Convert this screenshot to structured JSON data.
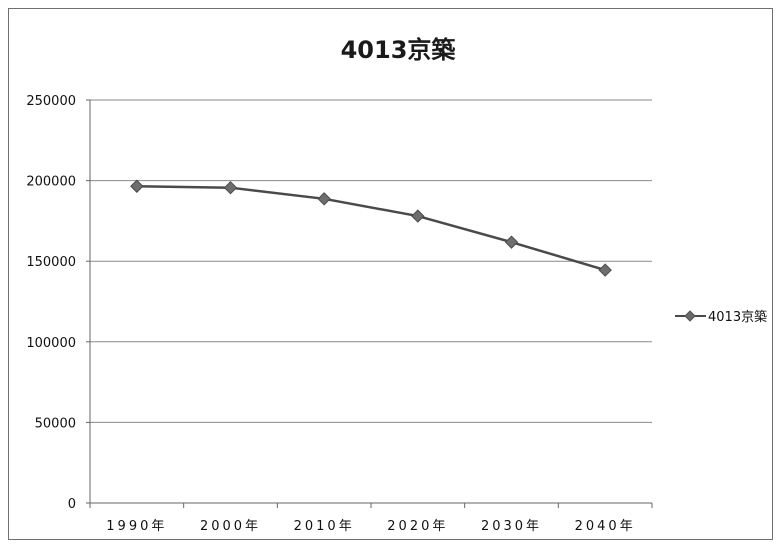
{
  "chart_data": {
    "type": "line",
    "title": "4013京築",
    "categories": [
      "1990年",
      "2000年",
      "2010年",
      "2020年",
      "2030年",
      "2040年"
    ],
    "y_ticks": [
      "0",
      "50000",
      "100000",
      "150000",
      "200000",
      "250000"
    ],
    "ylim": [
      0,
      250000
    ],
    "grid": "horizontal",
    "legend": "right",
    "series": [
      {
        "name": "4013京築",
        "values": [
          196500,
          195600,
          188700,
          178000,
          161800,
          144500
        ],
        "color": "#4a4a4a",
        "marker": "diamond"
      }
    ]
  }
}
